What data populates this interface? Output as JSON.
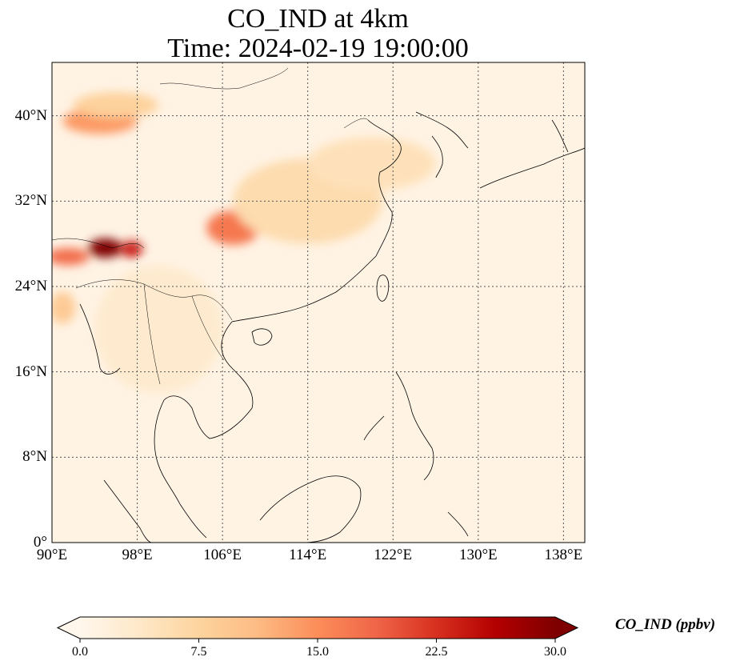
{
  "title": {
    "line1": "CO_IND at 4km",
    "line2": "Time: 2024-02-19 19:00:00"
  },
  "map": {
    "extent": {
      "lon": [
        90,
        140
      ],
      "lat": [
        0,
        45
      ]
    },
    "lon_ticks": [
      {
        "value": 90,
        "label": "90°E"
      },
      {
        "value": 98,
        "label": "98°E"
      },
      {
        "value": 106,
        "label": "106°E"
      },
      {
        "value": 114,
        "label": "114°E"
      },
      {
        "value": 122,
        "label": "122°E"
      },
      {
        "value": 130,
        "label": "130°E"
      },
      {
        "value": 138,
        "label": "138°E"
      }
    ],
    "lat_ticks": [
      {
        "value": 0,
        "label": "0°"
      },
      {
        "value": 8,
        "label": "8°N"
      },
      {
        "value": 16,
        "label": "16°N"
      },
      {
        "value": 24,
        "label": "24°N"
      },
      {
        "value": 32,
        "label": "32°N"
      },
      {
        "value": 40,
        "label": "40°N"
      }
    ],
    "gridlines": true,
    "background_color": "#fff3e4",
    "hotspots": [
      {
        "lon": 95.0,
        "lat": 27.6,
        "value": 30,
        "spread_lon": 1.6,
        "spread_lat": 0.9
      },
      {
        "lon": 97.5,
        "lat": 27.5,
        "value": 24,
        "spread_lon": 1.0,
        "spread_lat": 0.8
      },
      {
        "lon": 91.5,
        "lat": 26.8,
        "value": 18,
        "spread_lon": 2.0,
        "spread_lat": 0.8
      },
      {
        "lon": 107.0,
        "lat": 29.5,
        "value": 17,
        "spread_lon": 2.5,
        "spread_lat": 1.6
      },
      {
        "lon": 94.5,
        "lat": 39.5,
        "value": 14,
        "spread_lon": 3.5,
        "spread_lat": 1.2
      },
      {
        "lon": 96.0,
        "lat": 41.0,
        "value": 8,
        "spread_lon": 4.0,
        "spread_lat": 1.2
      },
      {
        "lon": 114.0,
        "lat": 32.0,
        "value": 6,
        "spread_lon": 7.0,
        "spread_lat": 4.0
      },
      {
        "lon": 91.0,
        "lat": 22.0,
        "value": 9,
        "spread_lon": 1.2,
        "spread_lat": 1.5
      },
      {
        "lon": 120.0,
        "lat": 35.5,
        "value": 5,
        "spread_lon": 6.0,
        "spread_lat": 2.5
      },
      {
        "lon": 100.0,
        "lat": 20.0,
        "value": 3,
        "spread_lon": 6.0,
        "spread_lat": 6.0
      }
    ]
  },
  "colorbar": {
    "label": "CO_IND (ppbv)",
    "min": 0.0,
    "max": 30.0,
    "ticks": [
      "0.0",
      "7.5",
      "15.0",
      "22.5",
      "30.0"
    ],
    "tick_values": [
      0.0,
      7.5,
      15.0,
      22.5,
      30.0
    ],
    "colormap": "OrRd",
    "colors": [
      "#fff7ec",
      "#fee8c8",
      "#fdd49e",
      "#fdbb84",
      "#fc8d59",
      "#ef6548",
      "#d7301f",
      "#b30000",
      "#7f0000"
    ],
    "extend": "both"
  }
}
